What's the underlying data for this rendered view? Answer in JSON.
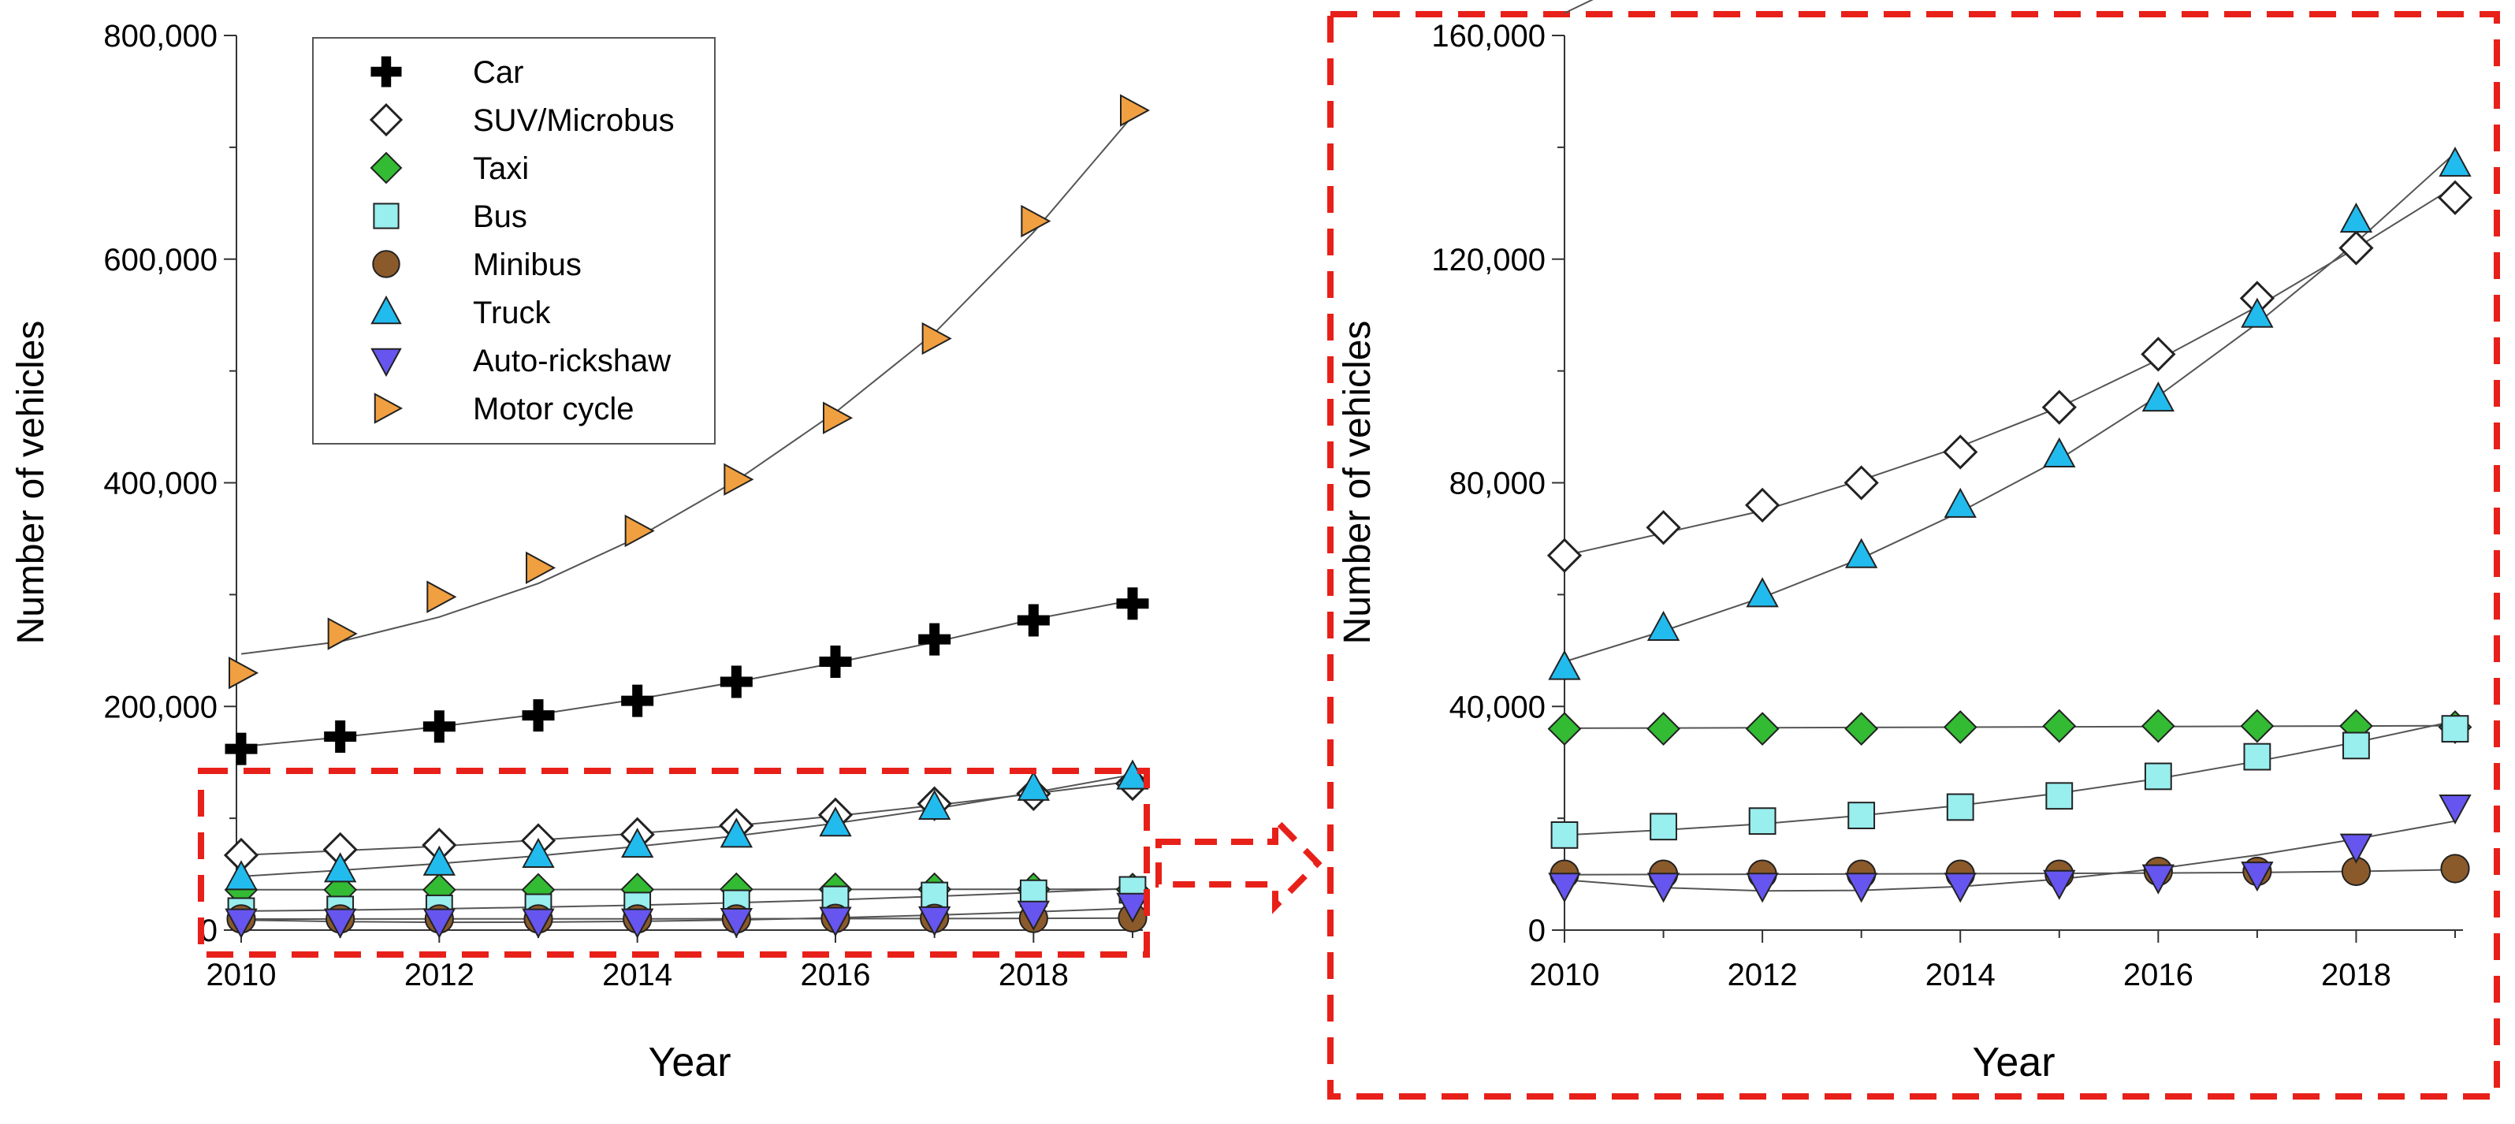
{
  "chart_data": [
    {
      "id": "full",
      "type": "scatter",
      "xlabel": "Year",
      "ylabel": "Number of vehicles",
      "xlim": [
        2010,
        2019
      ],
      "ylim": [
        0,
        800000
      ],
      "x_ticks": [
        2010,
        2012,
        2014,
        2016,
        2018
      ],
      "y_ticks": [
        0,
        200000,
        400000,
        600000,
        800000
      ],
      "y_tick_labels": [
        "0",
        "200,000",
        "400,000",
        "600,000",
        "800,000"
      ],
      "legend_position": "top-left",
      "highlight_region": {
        "x": [
          2010,
          2019
        ],
        "y": [
          0,
          140000
        ]
      }
    },
    {
      "id": "zoom",
      "type": "scatter",
      "xlabel": "Year",
      "ylabel": "Number of vehicles",
      "xlim": [
        2010,
        2019
      ],
      "ylim": [
        0,
        160000
      ],
      "x_ticks": [
        2010,
        2012,
        2014,
        2016,
        2018
      ],
      "y_ticks": [
        0,
        40000,
        80000,
        120000,
        160000
      ],
      "y_tick_labels": [
        "0",
        "40,000",
        "80,000",
        "120,000",
        "160,000"
      ]
    }
  ],
  "years": [
    2010,
    2011,
    2012,
    2013,
    2014,
    2015,
    2016,
    2017,
    2018,
    2019
  ],
  "series": [
    {
      "key": "car",
      "name": "Car",
      "marker": "plus",
      "color": "#000000",
      "values": [
        162000,
        173000,
        182000,
        192000,
        205000,
        222000,
        240000,
        260000,
        277000,
        292000
      ],
      "fit": [
        164000,
        172500,
        182000,
        193000,
        206500,
        222000,
        239000,
        257500,
        278000,
        295000
      ]
    },
    {
      "key": "suv",
      "name": "SUV/Microbus",
      "marker": "diamond-open",
      "color": "#ffffff",
      "values": [
        67000,
        72000,
        76000,
        80000,
        85500,
        93500,
        103000,
        113000,
        122000,
        131000
      ],
      "fit": [
        67000,
        71000,
        75000,
        80500,
        86500,
        93500,
        102000,
        111500,
        122000,
        133000
      ]
    },
    {
      "key": "taxi",
      "name": "Taxi",
      "marker": "diamond",
      "color": "#33bb33",
      "values": [
        36000,
        36000,
        36000,
        36000,
        36300,
        36500,
        36500,
        36500,
        36500,
        36300
      ],
      "fit": [
        36100,
        36150,
        36200,
        36250,
        36300,
        36350,
        36400,
        36450,
        36500,
        36550
      ]
    },
    {
      "key": "bus",
      "name": "Bus",
      "marker": "square",
      "color": "#99eeee",
      "values": [
        17000,
        18500,
        19500,
        20500,
        22000,
        24000,
        27500,
        31000,
        33000,
        36000
      ],
      "fit": [
        17000,
        17900,
        19000,
        20500,
        22300,
        24500,
        27100,
        30200,
        33600,
        37400
      ]
    },
    {
      "key": "minibus",
      "name": "Minibus",
      "marker": "circle",
      "color": "#8b5a2b",
      "values": [
        10000,
        10000,
        10000,
        10000,
        10000,
        10000,
        10500,
        10500,
        10500,
        11000
      ],
      "fit": [
        9900,
        9950,
        10000,
        10050,
        10100,
        10150,
        10200,
        10300,
        10500,
        10800
      ]
    },
    {
      "key": "truck",
      "name": "Truck",
      "marker": "triangle-up",
      "color": "#22bbee",
      "values": [
        47000,
        54000,
        60000,
        67000,
        76000,
        85000,
        95000,
        110000,
        127000,
        137000
      ],
      "fit": [
        48000,
        53500,
        59500,
        66500,
        74800,
        84200,
        95500,
        108500,
        123000,
        139000
      ]
    },
    {
      "key": "autorickshaw",
      "name": "Auto-rickshaw",
      "marker": "triangle-down",
      "color": "#6655ee",
      "values": [
        8000,
        8000,
        8000,
        8000,
        8000,
        8500,
        9500,
        10000,
        15000,
        22000
      ],
      "fit": [
        9000,
        7600,
        7000,
        7100,
        7800,
        9100,
        11000,
        13400,
        16300,
        19500
      ]
    },
    {
      "key": "motorcycle",
      "name": "Motor cycle",
      "marker": "triangle-right",
      "color": "#f0a040",
      "values": [
        230000,
        265000,
        298000,
        324000,
        357000,
        403000,
        458000,
        529000,
        634000,
        733000
      ],
      "fit": [
        247000,
        258000,
        280000,
        310000,
        351000,
        402000,
        463000,
        534000,
        624000,
        728000
      ]
    }
  ]
}
